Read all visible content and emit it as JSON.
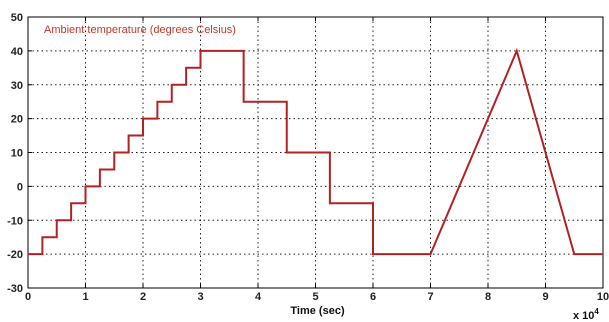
{
  "chart_data": {
    "type": "line",
    "title": "",
    "xlabel": "Time (sec)",
    "ylabel": "",
    "x_multiplier_label": "x 10",
    "x_multiplier_exponent": "4",
    "xlim": [
      0,
      10
    ],
    "ylim": [
      -30,
      50
    ],
    "xticks": [
      0,
      1,
      2,
      3,
      4,
      5,
      6,
      7,
      8,
      9,
      10
    ],
    "yticks": [
      -30,
      -20,
      -10,
      0,
      10,
      20,
      30,
      40,
      50
    ],
    "grid": true,
    "legend_position": "top-left",
    "series": [
      {
        "name": "Ambient temperature (degrees Celsius)",
        "color": "#b22222",
        "x": [
          0,
          0.25,
          0.25,
          0.5,
          0.5,
          0.75,
          0.75,
          1.0,
          1.0,
          1.25,
          1.25,
          1.5,
          1.5,
          1.75,
          1.75,
          2.0,
          2.0,
          2.25,
          2.25,
          2.5,
          2.5,
          2.75,
          2.75,
          3.0,
          3.0,
          3.75,
          3.75,
          4.5,
          4.5,
          5.25,
          5.25,
          6.0,
          6.0,
          7.0,
          8.5,
          9.5,
          10.0
        ],
        "y": [
          -20,
          -20,
          -15,
          -15,
          -10,
          -10,
          -5,
          -5,
          0,
          0,
          5,
          5,
          10,
          10,
          15,
          15,
          20,
          20,
          25,
          25,
          30,
          30,
          35,
          35,
          40,
          40,
          25,
          25,
          10,
          10,
          -5,
          -5,
          -20,
          -20,
          40,
          -20,
          -20
        ]
      }
    ]
  }
}
